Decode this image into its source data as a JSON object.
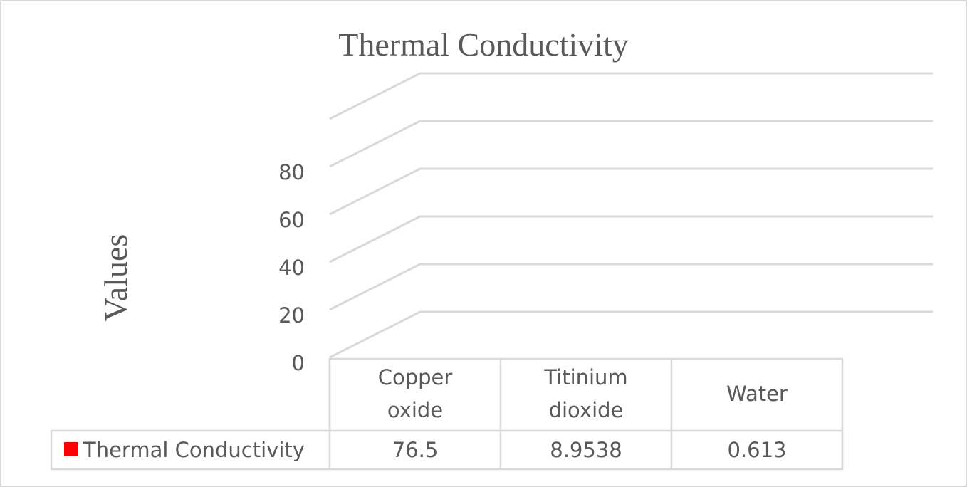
{
  "chart_data": {
    "type": "bar",
    "title": "Thermal Conductivity",
    "ylabel": "Values",
    "xlabel": "",
    "categories": [
      [
        "Copper",
        "oxide"
      ],
      [
        "Titinium",
        "dioxide"
      ],
      [
        "Water"
      ]
    ],
    "series": [
      {
        "name": "Thermal Conductivity",
        "values": [
          76.5,
          8.9538,
          0.613
        ],
        "labels": [
          "76.5",
          "8.9538",
          "0.613"
        ],
        "color": "#ff0000"
      }
    ],
    "yticks": [
      "0",
      "20",
      "40",
      "60",
      "80"
    ],
    "ylim": [
      0,
      100
    ],
    "grid": true,
    "view": "3d",
    "data_table": true
  }
}
